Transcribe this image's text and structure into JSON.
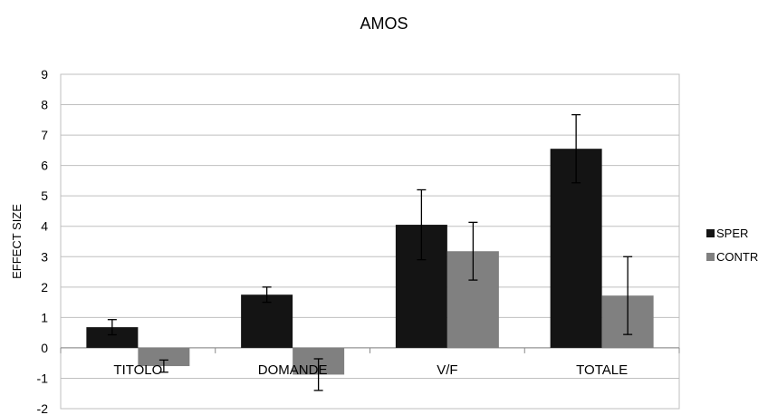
{
  "chart_data": {
    "type": "bar",
    "title": "AMOS",
    "xlabel": "",
    "ylabel": "EFFECT SIZE",
    "ylim": [
      -2,
      9
    ],
    "yticks": [
      -2,
      -1,
      0,
      1,
      2,
      3,
      4,
      5,
      6,
      7,
      8,
      9
    ],
    "grid": true,
    "legend_position": "right",
    "categories": [
      "TITOLO",
      "DOMANDE",
      "V/F",
      "TOTALE"
    ],
    "series": [
      {
        "name": "SPER",
        "color": "#141414",
        "values": [
          0.68,
          1.75,
          4.05,
          6.55
        ],
        "error": [
          0.25,
          0.25,
          1.15,
          1.12
        ]
      },
      {
        "name": "CONTR",
        "color": "#808080",
        "values": [
          -0.6,
          -0.88,
          3.18,
          1.72
        ],
        "error": [
          0.2,
          0.52,
          0.95,
          1.28
        ]
      }
    ]
  }
}
